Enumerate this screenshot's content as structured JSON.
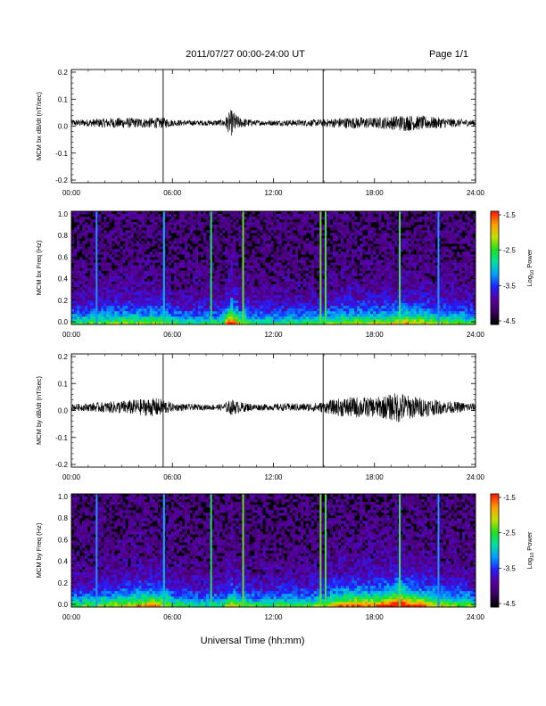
{
  "header": {
    "title": "2011/07/27  00:00-24:00 UT",
    "page": "Page 1/1"
  },
  "footer": {
    "xlabel": "Universal Time (hh:mm)"
  },
  "colorbar": {
    "label_prefix": "Log",
    "label_sub": "10",
    "label_suffix": " Power",
    "ticks": [
      "-1.5",
      "-2.5",
      "-3.5",
      "-4.5"
    ],
    "colors": [
      "#000000",
      "#3a0060",
      "#5a00a0",
      "#2020ff",
      "#00a0ff",
      "#00e0a0",
      "#20e020",
      "#c0e000",
      "#ffa000",
      "#ff2000"
    ]
  },
  "chart_data": [
    {
      "type": "line",
      "panel": "bx-dbdt",
      "ylabel": "MCM bx dB/dt (nT/sec)",
      "ylim": [
        -0.2,
        0.2
      ],
      "yticks": [
        "0.2",
        "0.1",
        "0.0",
        "-0.1",
        "-0.2"
      ],
      "xlim_hours": [
        0,
        24
      ],
      "xticks": [
        "00:00",
        "06:00",
        "12:00",
        "18:00",
        "24:00"
      ],
      "x_hours": [
        0,
        1,
        2,
        3,
        4,
        5,
        5.5,
        6,
        7,
        8,
        9,
        9.5,
        10,
        11,
        12,
        13,
        14,
        15,
        16,
        17,
        18,
        19,
        19.5,
        20,
        21,
        22,
        23,
        24
      ],
      "amplitude": [
        0.012,
        0.014,
        0.018,
        0.02,
        0.018,
        0.02,
        0.02,
        0.012,
        0.01,
        0.01,
        0.012,
        0.05,
        0.02,
        0.01,
        0.01,
        0.012,
        0.012,
        0.014,
        0.02,
        0.022,
        0.02,
        0.025,
        0.03,
        0.03,
        0.025,
        0.02,
        0.015,
        0.012
      ],
      "spike_hours": [
        5.45,
        14.95
      ]
    },
    {
      "type": "heatmap",
      "panel": "bx-spectrogram",
      "ylabel": "MCM bx Freq (Hz)",
      "ylim": [
        0,
        1.0
      ],
      "yticks": [
        "1.0",
        "0.8",
        "0.6",
        "0.4",
        "0.2",
        "0.0"
      ],
      "xlim_hours": [
        0,
        24
      ],
      "xticks": [
        "00:00",
        "06:00",
        "12:00",
        "18:00",
        "24:00"
      ],
      "stripes": [
        {
          "hour": 1.5,
          "color": "#1e90ff"
        },
        {
          "hour": 5.5,
          "color": "#00c0e0"
        },
        {
          "hour": 8.3,
          "color": "#20e060"
        },
        {
          "hour": 10.2,
          "color": "#60e020"
        },
        {
          "hour": 14.8,
          "color": "#60e020"
        },
        {
          "hour": 15.1,
          "color": "#40e040"
        },
        {
          "hour": 19.5,
          "color": "#40e060"
        },
        {
          "hour": 21.8,
          "color": "#1e90ff"
        }
      ]
    },
    {
      "type": "line",
      "panel": "by-dbdt",
      "ylabel": "MCM by dB/dt (nT/sec)",
      "ylim": [
        -0.2,
        0.2
      ],
      "yticks": [
        "0.2",
        "0.1",
        "0.0",
        "-0.1",
        "-0.2"
      ],
      "xlim_hours": [
        0,
        24
      ],
      "xticks": [
        "00:00",
        "06:00",
        "12:00",
        "18:00",
        "24:00"
      ],
      "x_hours": [
        0,
        1,
        2,
        3,
        4,
        5,
        5.5,
        6,
        7,
        8,
        9,
        9.5,
        10,
        11,
        12,
        13,
        14,
        15,
        16,
        17,
        18,
        19,
        19.5,
        20,
        21,
        22,
        23,
        24
      ],
      "amplitude": [
        0.012,
        0.015,
        0.02,
        0.025,
        0.03,
        0.035,
        0.03,
        0.015,
        0.012,
        0.01,
        0.012,
        0.03,
        0.02,
        0.012,
        0.012,
        0.015,
        0.015,
        0.02,
        0.035,
        0.04,
        0.035,
        0.05,
        0.06,
        0.045,
        0.035,
        0.025,
        0.02,
        0.015
      ],
      "spike_hours": [
        5.45,
        14.95
      ]
    },
    {
      "type": "heatmap",
      "panel": "by-spectrogram",
      "ylabel": "MCM by Freq (Hz)",
      "ylim": [
        0,
        1.0
      ],
      "yticks": [
        "1.0",
        "0.8",
        "0.6",
        "0.4",
        "0.2",
        "0.0"
      ],
      "xlim_hours": [
        0,
        24
      ],
      "xticks": [
        "00:00",
        "06:00",
        "12:00",
        "18:00",
        "24:00"
      ],
      "stripes": [
        {
          "hour": 1.5,
          "color": "#1e90ff"
        },
        {
          "hour": 5.5,
          "color": "#00c0e0"
        },
        {
          "hour": 8.3,
          "color": "#20e060"
        },
        {
          "hour": 10.2,
          "color": "#60e020"
        },
        {
          "hour": 14.8,
          "color": "#60e020"
        },
        {
          "hour": 15.1,
          "color": "#40e040"
        },
        {
          "hour": 19.5,
          "color": "#40e060"
        },
        {
          "hour": 21.8,
          "color": "#1e90ff"
        }
      ]
    }
  ]
}
